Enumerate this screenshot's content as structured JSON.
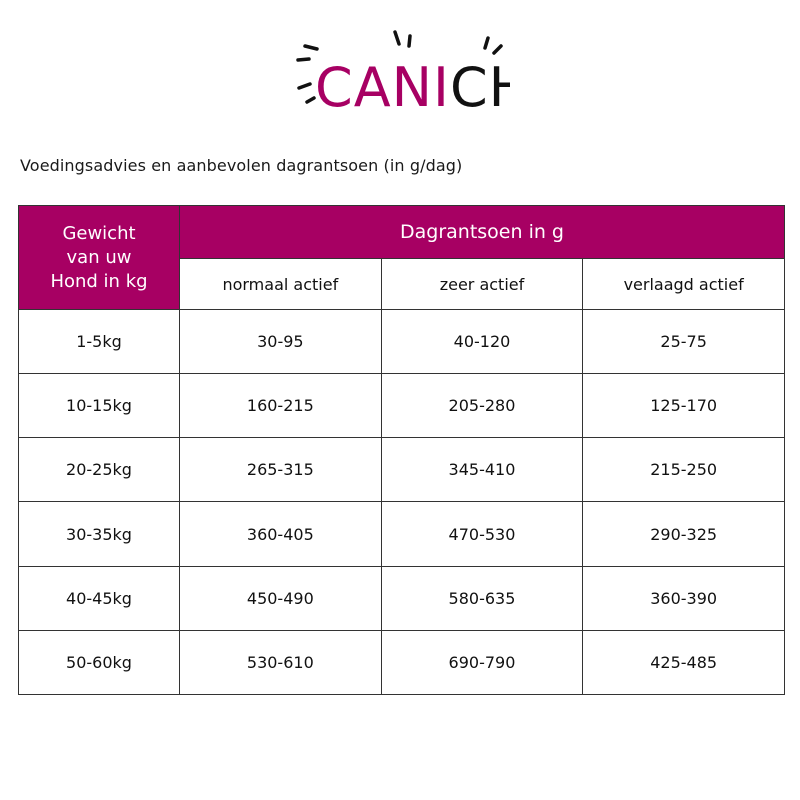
{
  "brand": {
    "logo_text": "CANICHEF",
    "logo_part1": "CANI",
    "logo_part2": "CHEF",
    "primary_color": "#a70063",
    "text_color": "#111111"
  },
  "subtitle": "Voedingsadvies en aanbevolen dagrantsoen (in g/dag)",
  "table": {
    "weight_header_line1": "Gewicht",
    "weight_header_line2": "van uw",
    "weight_header_line3": "Hond in kg",
    "group_header": "Dagrantsoen in g",
    "columns": [
      "normaal actief",
      "zeer actief",
      "verlaagd actief"
    ],
    "rows": [
      {
        "weight": "1-5kg",
        "values": [
          "30-95",
          "40-120",
          "25-75"
        ]
      },
      {
        "weight": "10-15kg",
        "values": [
          "160-215",
          "205-280",
          "125-170"
        ]
      },
      {
        "weight": "20-25kg",
        "values": [
          "265-315",
          "345-410",
          "215-250"
        ]
      },
      {
        "weight": "30-35kg",
        "values": [
          "360-405",
          "470-530",
          "290-325"
        ]
      },
      {
        "weight": "40-45kg",
        "values": [
          "450-490",
          "580-635",
          "360-390"
        ]
      },
      {
        "weight": "50-60kg",
        "values": [
          "530-610",
          "690-790",
          "425-485"
        ]
      }
    ]
  }
}
